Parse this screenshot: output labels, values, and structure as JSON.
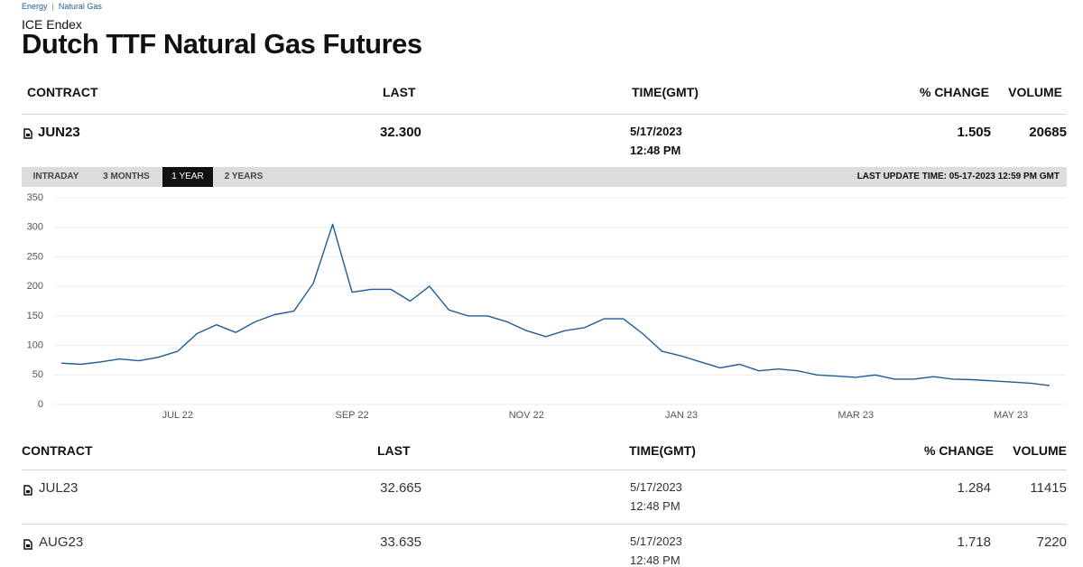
{
  "breadcrumb": [
    "Energy",
    "Natural Gas"
  ],
  "header": {
    "exchange": "ICE Endex",
    "title": "Dutch TTF Natural Gas Futures"
  },
  "top_table": {
    "columns": [
      "CONTRACT",
      "LAST",
      "TIME(GMT)",
      "% CHANGE",
      "VOLUME"
    ],
    "rows": [
      [
        "JUN23",
        "32.300",
        "5/17/2023",
        "12:48 PM",
        "1.505",
        "20685"
      ]
    ]
  },
  "tabs": {
    "items": [
      "INTRADAY",
      "3 MONTHS",
      "1 YEAR",
      "2 YEARS"
    ],
    "active": 2
  },
  "last_update": "LAST UPDATE TIME: 05-17-2023 12:59 PM GMT",
  "chart_data": {
    "type": "line",
    "categories": [
      null,
      null,
      null,
      null,
      null,
      null,
      "JUL 22",
      null,
      null,
      null,
      null,
      null,
      null,
      null,
      null,
      "SEP 22",
      null,
      null,
      null,
      null,
      null,
      null,
      null,
      null,
      "NOV 22",
      null,
      null,
      null,
      null,
      null,
      null,
      null,
      "JAN 23",
      null,
      null,
      null,
      null,
      null,
      null,
      null,
      null,
      "MAR 23",
      null,
      null,
      null,
      null,
      null,
      null,
      null,
      "MAY 23",
      null,
      null
    ],
    "values": [
      70,
      68,
      72,
      77,
      74,
      80,
      90,
      120,
      135,
      122,
      140,
      152,
      158,
      205,
      305,
      190,
      195,
      195,
      175,
      200,
      160,
      150,
      150,
      140,
      125,
      115,
      125,
      130,
      145,
      145,
      120,
      90,
      82,
      72,
      62,
      68,
      57,
      60,
      57,
      50,
      48,
      46,
      50,
      43,
      43,
      47,
      43,
      42,
      40,
      38,
      36,
      32
    ],
    "color": "#1f5a99",
    "ylim": [
      0,
      350
    ],
    "yticks": [
      0,
      50,
      100,
      150,
      200,
      250,
      300,
      350
    ],
    "grid": true
  },
  "bottom_table": {
    "columns": [
      "CONTRACT",
      "LAST",
      "TIME(GMT)",
      "% CHANGE",
      "VOLUME"
    ],
    "rows": [
      [
        "JUL23",
        "32.665",
        "5/17/2023",
        "12:48 PM",
        "1.284",
        "11415"
      ],
      [
        "AUG23",
        "33.635",
        "5/17/2023",
        "12:48 PM",
        "1.718",
        "7220"
      ]
    ]
  }
}
